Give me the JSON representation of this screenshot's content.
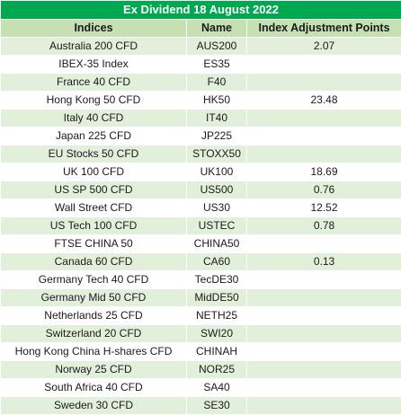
{
  "title": "Ex Dividend 18 August 2022",
  "columns": [
    "Indices",
    "Name",
    "Index Adjustment Points"
  ],
  "rows": [
    {
      "index": "Australia 200 CFD",
      "name": "AUS200",
      "points": "2.07"
    },
    {
      "index": "IBEX-35 Index",
      "name": "ES35",
      "points": ""
    },
    {
      "index": "France 40 CFD",
      "name": "F40",
      "points": ""
    },
    {
      "index": "Hong Kong 50 CFD",
      "name": "HK50",
      "points": "23.48"
    },
    {
      "index": "Italy 40 CFD",
      "name": "IT40",
      "points": ""
    },
    {
      "index": "Japan 225 CFD",
      "name": "JP225",
      "points": ""
    },
    {
      "index": "EU Stocks 50 CFD",
      "name": "STOXX50",
      "points": ""
    },
    {
      "index": "UK 100 CFD",
      "name": "UK100",
      "points": "18.69"
    },
    {
      "index": "US SP 500 CFD",
      "name": "US500",
      "points": "0.76"
    },
    {
      "index": "Wall Street CFD",
      "name": "US30",
      "points": "12.52"
    },
    {
      "index": "US Tech 100 CFD",
      "name": "USTEC",
      "points": "0.78"
    },
    {
      "index": "FTSE CHINA 50",
      "name": "CHINA50",
      "points": ""
    },
    {
      "index": "Canada 60 CFD",
      "name": "CA60",
      "points": "0.13"
    },
    {
      "index": "Germany Tech 40 CFD",
      "name": "TecDE30",
      "points": ""
    },
    {
      "index": "Germany Mid 50 CFD",
      "name": "MidDE50",
      "points": ""
    },
    {
      "index": "Netherlands 25 CFD",
      "name": "NETH25",
      "points": ""
    },
    {
      "index": "Switzerland 20 CFD",
      "name": "SWI20",
      "points": ""
    },
    {
      "index": "Hong Kong China H-shares CFD",
      "name": "CHINAH",
      "points": ""
    },
    {
      "index": "Norway 25 CFD",
      "name": "NOR25",
      "points": ""
    },
    {
      "index": "South Africa 40 CFD",
      "name": "SA40",
      "points": ""
    },
    {
      "index": "Sweden 30 CFD",
      "name": "SE30",
      "points": ""
    }
  ],
  "colors": {
    "title_bg": "#00a84f",
    "header_bg": "#c6e0b4",
    "band_bg": "#e2efda"
  }
}
